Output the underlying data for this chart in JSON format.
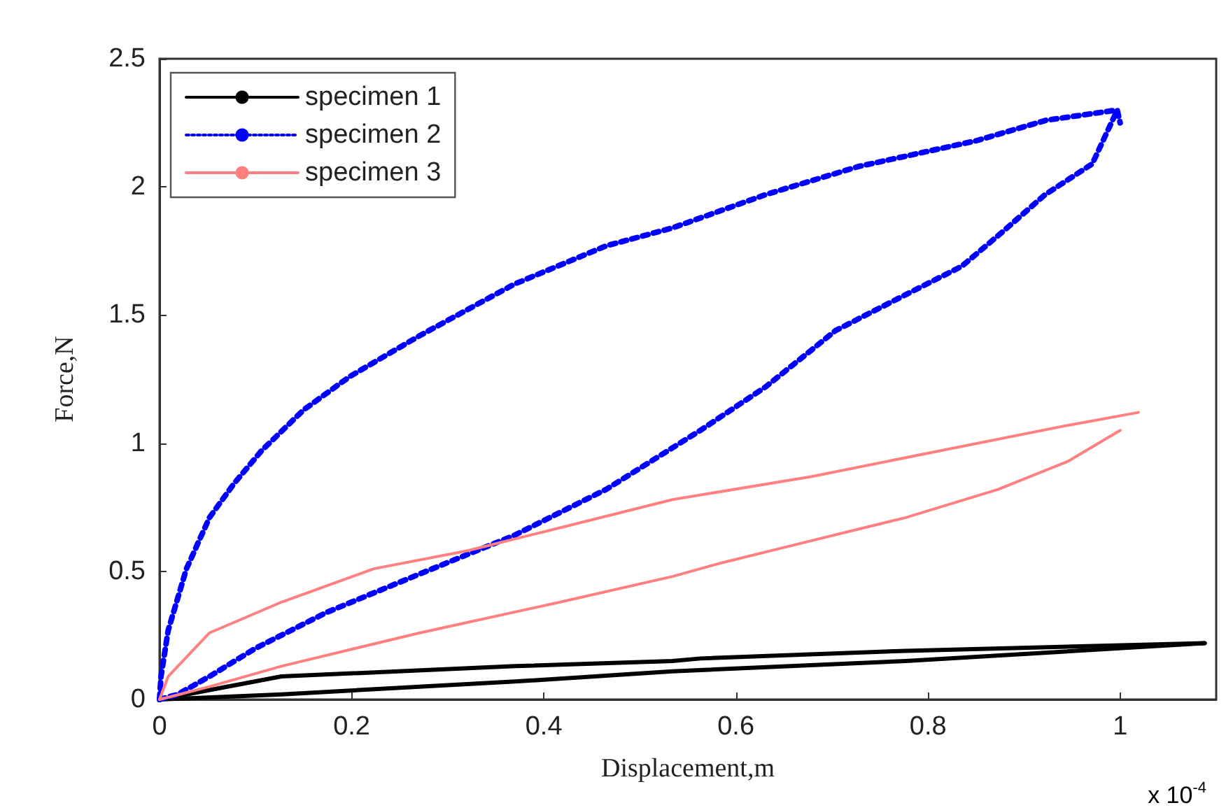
{
  "chart_data": {
    "type": "line",
    "xlabel": "Displacement,m",
    "ylabel": "Force,N",
    "xlim": [
      0,
      1.1
    ],
    "xticks": [
      0,
      0.2,
      0.4,
      0.6,
      0.8,
      1
    ],
    "ylim": [
      0,
      2.5
    ],
    "yticks": [
      0,
      0.5,
      1,
      1.5,
      2,
      2.5
    ],
    "grid": false,
    "legend": "top left",
    "marker": "none",
    "annotations": [
      "x 10$^{-4}$"
    ],
    "series": [
      {
        "name": "specimen 1",
        "color": "#000000",
        "line_style": "solid",
        "x": [
          0,
          0.127,
          0.37,
          0.534,
          0.563,
          0.777,
          1.088
        ],
        "values": [
          0,
          0.09,
          0.13,
          0.15,
          0.16,
          0.19,
          0.22
        ]
      },
      {
        "color": "#000000",
        "line_style": "solid",
        "x": [
          0,
          0.127,
          0.37,
          0.534,
          0.777,
          1.088
        ],
        "values": [
          0,
          0.02,
          0.07,
          0.11,
          0.15,
          0.22
        ]
      },
      {
        "name": "specimen 2",
        "color": "#0000ff",
        "line_style": "dotted",
        "x": [
          0,
          0.0015,
          0.009,
          0.028,
          0.052,
          0.077,
          0.106,
          0.15,
          0.198,
          0.271,
          0.369,
          0.465,
          0.534,
          0.631,
          0.728,
          0.85,
          0.923,
          0.997
        ],
        "values": [
          0,
          0.09,
          0.27,
          0.51,
          0.71,
          0.84,
          0.97,
          1.13,
          1.26,
          1.42,
          1.62,
          1.77,
          1.84,
          1.97,
          2.08,
          2.18,
          2.26,
          2.3
        ]
      },
      {
        "color": "#0000ff",
        "line_style": "dotted",
        "x": [
          0,
          0.019,
          0.052,
          0.1,
          0.174,
          0.271,
          0.369,
          0.465,
          0.563,
          0.631,
          0.704,
          0.777,
          0.835,
          0.873,
          0.922,
          0.971,
          0.997,
          1.0
        ],
        "values": [
          0,
          0.02,
          0.09,
          0.2,
          0.34,
          0.49,
          0.64,
          0.82,
          1.05,
          1.22,
          1.44,
          1.58,
          1.69,
          1.81,
          1.97,
          2.09,
          2.3,
          2.25
        ]
      },
      {
        "name": "specimen 3",
        "color": "#ff8080",
        "line_style": "solid",
        "x": [
          0,
          0.009,
          0.052,
          0.127,
          0.223,
          0.32,
          0.417,
          0.534,
          0.679,
          0.825,
          0.946,
          1.019
        ],
        "values": [
          0,
          0.09,
          0.26,
          0.38,
          0.51,
          0.58,
          0.67,
          0.78,
          0.87,
          0.98,
          1.07,
          1.12
        ]
      },
      {
        "color": "#ff8080",
        "line_style": "solid",
        "x": [
          0,
          0.052,
          0.127,
          0.271,
          0.417,
          0.534,
          0.582,
          0.679,
          0.777,
          0.873,
          0.946,
          1.0
        ],
        "values": [
          0,
          0.05,
          0.13,
          0.26,
          0.38,
          0.48,
          0.53,
          0.62,
          0.71,
          0.82,
          0.93,
          1.05
        ]
      }
    ]
  }
}
